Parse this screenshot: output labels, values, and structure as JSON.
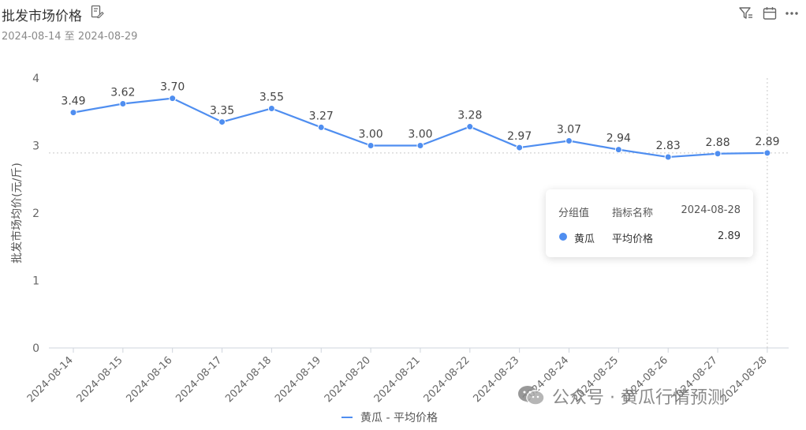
{
  "header": {
    "title": "批发市场价格",
    "subtitle": "2024-08-14 至 2024-08-29",
    "title_icon": "document-edit-icon",
    "tools": [
      "filter-icon",
      "calendar-icon",
      "more-icon"
    ]
  },
  "chart_data": {
    "type": "line",
    "x": [
      "2024-08-14",
      "2024-08-15",
      "2024-08-16",
      "2024-08-17",
      "2024-08-18",
      "2024-08-19",
      "2024-08-20",
      "2024-08-21",
      "2024-08-22",
      "2024-08-23",
      "2024-08-24",
      "2024-08-25",
      "2024-08-26",
      "2024-08-27",
      "2024-08-28"
    ],
    "series": [
      {
        "name": "黄瓜 - 平均价格",
        "values": [
          3.49,
          3.62,
          3.7,
          3.35,
          3.55,
          3.27,
          3.0,
          3.0,
          3.28,
          2.97,
          3.07,
          2.94,
          2.83,
          2.88,
          2.89
        ],
        "color": "#4f8ef0"
      }
    ],
    "data_labels": [
      "3.49",
      "3.62",
      "3.70",
      "3.35",
      "3.55",
      "3.27",
      "3.00",
      "3.00",
      "3.28",
      "2.97",
      "3.07",
      "2.94",
      "2.83",
      "2.88",
      "2.89"
    ],
    "ylabel": "批发市场均价(元/斤)",
    "xlabel": "",
    "ylim": [
      0,
      4
    ],
    "yticks": [
      "0",
      "1",
      "2",
      "3",
      "4"
    ],
    "grid": false,
    "legend_position": "bottom-center"
  },
  "tooltip": {
    "header_group": "分组值",
    "header_metric": "指标名称",
    "header_date": "2024-08-28",
    "row_group": "黄瓜",
    "row_metric": "平均价格",
    "row_value": "2.89"
  },
  "watermark": {
    "text": "公众号 · 黄瓜行情预测",
    "icon": "wechat-icon"
  }
}
